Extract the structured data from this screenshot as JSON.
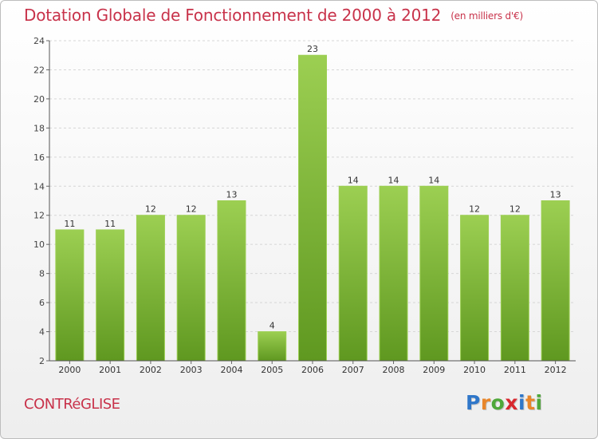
{
  "title": "Dotation Globale de Fonctionnement de 2000 à 2012",
  "unit": "(en milliers d'€)",
  "commune": "CONTRéGLISE",
  "logo": {
    "letters": [
      "P",
      "r",
      "o",
      "x",
      "i",
      "t",
      "i"
    ],
    "colors": [
      "#2f77c9",
      "#e8862a",
      "#4fa83a",
      "#d8282e",
      "#2f77c9",
      "#e8862a",
      "#4fa83a"
    ]
  },
  "colors": {
    "bar": "#7fb83a",
    "bar_light": "#9ccf52",
    "bar_dark": "#5f9820",
    "title": "#c8324a"
  },
  "chart_data": {
    "type": "bar",
    "categories": [
      "2000",
      "2001",
      "2002",
      "2003",
      "2004",
      "2005",
      "2006",
      "2007",
      "2008",
      "2009",
      "2010",
      "2011",
      "2012"
    ],
    "values": [
      11,
      11,
      12,
      12,
      13,
      4,
      23,
      14,
      14,
      14,
      12,
      12,
      13
    ],
    "ylim": [
      2,
      24
    ],
    "yticks": [
      2,
      4,
      6,
      8,
      10,
      12,
      14,
      16,
      18,
      20,
      22,
      24
    ],
    "grid": true
  }
}
